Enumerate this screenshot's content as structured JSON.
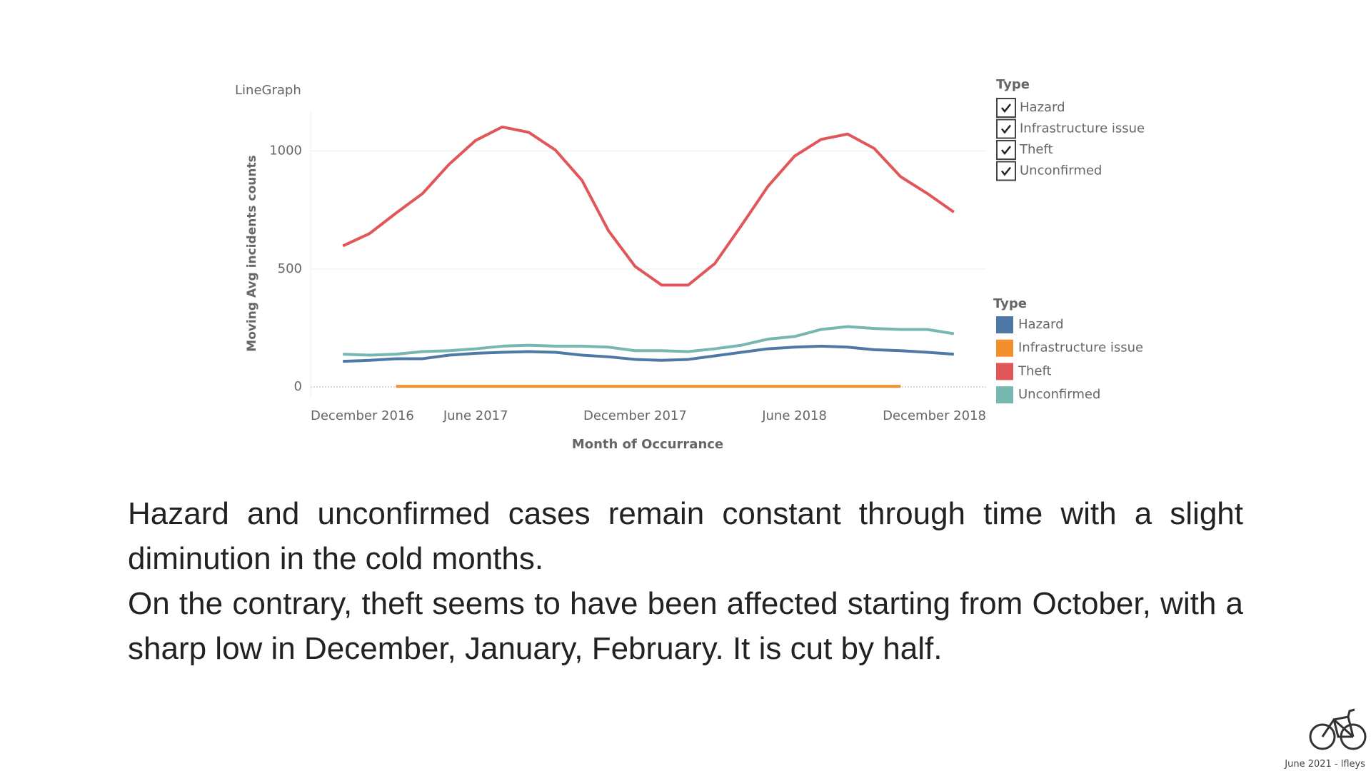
{
  "chart_data": {
    "type": "line",
    "title": "LineGraph",
    "x_label": "Month of Occurrance",
    "y_label": "Moving Avg incidents counts",
    "x": [
      "2017-01",
      "2017-02",
      "2017-03",
      "2017-04",
      "2017-05",
      "2017-06",
      "2017-07",
      "2017-08",
      "2017-09",
      "2017-10",
      "2017-11",
      "2017-12",
      "2018-01",
      "2018-02",
      "2018-03",
      "2018-04",
      "2018-05",
      "2018-06",
      "2018-07",
      "2018-08",
      "2018-09",
      "2018-10",
      "2018-11",
      "2018-12"
    ],
    "xlim": [
      "2016-12",
      "2019-01"
    ],
    "xticks": [
      {
        "value": "2016-12",
        "label": "December 2016"
      },
      {
        "value": "2017-06",
        "label": "June 2017"
      },
      {
        "value": "2017-12",
        "label": "December 2017"
      },
      {
        "value": "2018-06",
        "label": "June 2018"
      },
      {
        "value": "2018-12",
        "label": "December 2018"
      }
    ],
    "ylim": [
      -45,
      1165
    ],
    "yticks": [
      0,
      500,
      1000
    ],
    "grid": true,
    "legend_title": "Type",
    "legend_position": "right",
    "series": [
      {
        "name": "Hazard",
        "color": "#4e79a7",
        "values": [
          109,
          113,
          120,
          120,
          135,
          143,
          147,
          150,
          147,
          135,
          128,
          117,
          113,
          117,
          132,
          147,
          162,
          169,
          173,
          169,
          158,
          154,
          147,
          139
        ]
      },
      {
        "name": "Infrastructure issue",
        "color": "#f28e2b",
        "values": [
          null,
          null,
          3,
          3,
          3,
          3,
          3,
          3,
          3,
          3,
          3,
          3,
          3,
          3,
          3,
          3,
          3,
          3,
          3,
          3,
          3,
          3,
          null,
          null
        ]
      },
      {
        "name": "Theft",
        "color": "#e15759",
        "values": [
          598,
          650,
          737,
          820,
          944,
          1045,
          1102,
          1079,
          1004,
          876,
          662,
          511,
          432,
          432,
          523,
          684,
          850,
          978,
          1049,
          1072,
          1011,
          891,
          820,
          741
        ]
      },
      {
        "name": "Unconfirmed",
        "color": "#76b7b2",
        "values": [
          139,
          135,
          139,
          150,
          154,
          162,
          173,
          177,
          173,
          173,
          169,
          154,
          154,
          150,
          162,
          177,
          203,
          214,
          244,
          256,
          248,
          244,
          244,
          226
        ]
      }
    ],
    "filter": {
      "title": "Type",
      "items": [
        "Hazard",
        "Infrastructure issue",
        "Theft",
        "Unconfirmed"
      ]
    }
  },
  "text": {
    "paragraphs": [
      "Hazard and unconfirmed cases remain constant through time with a slight diminution in the cold months.",
      "On the contrary, theft seems to have been affected starting from October, with a sharp low in December, January, February. It is cut by half."
    ]
  },
  "footer": "June 2021 - lfleys"
}
